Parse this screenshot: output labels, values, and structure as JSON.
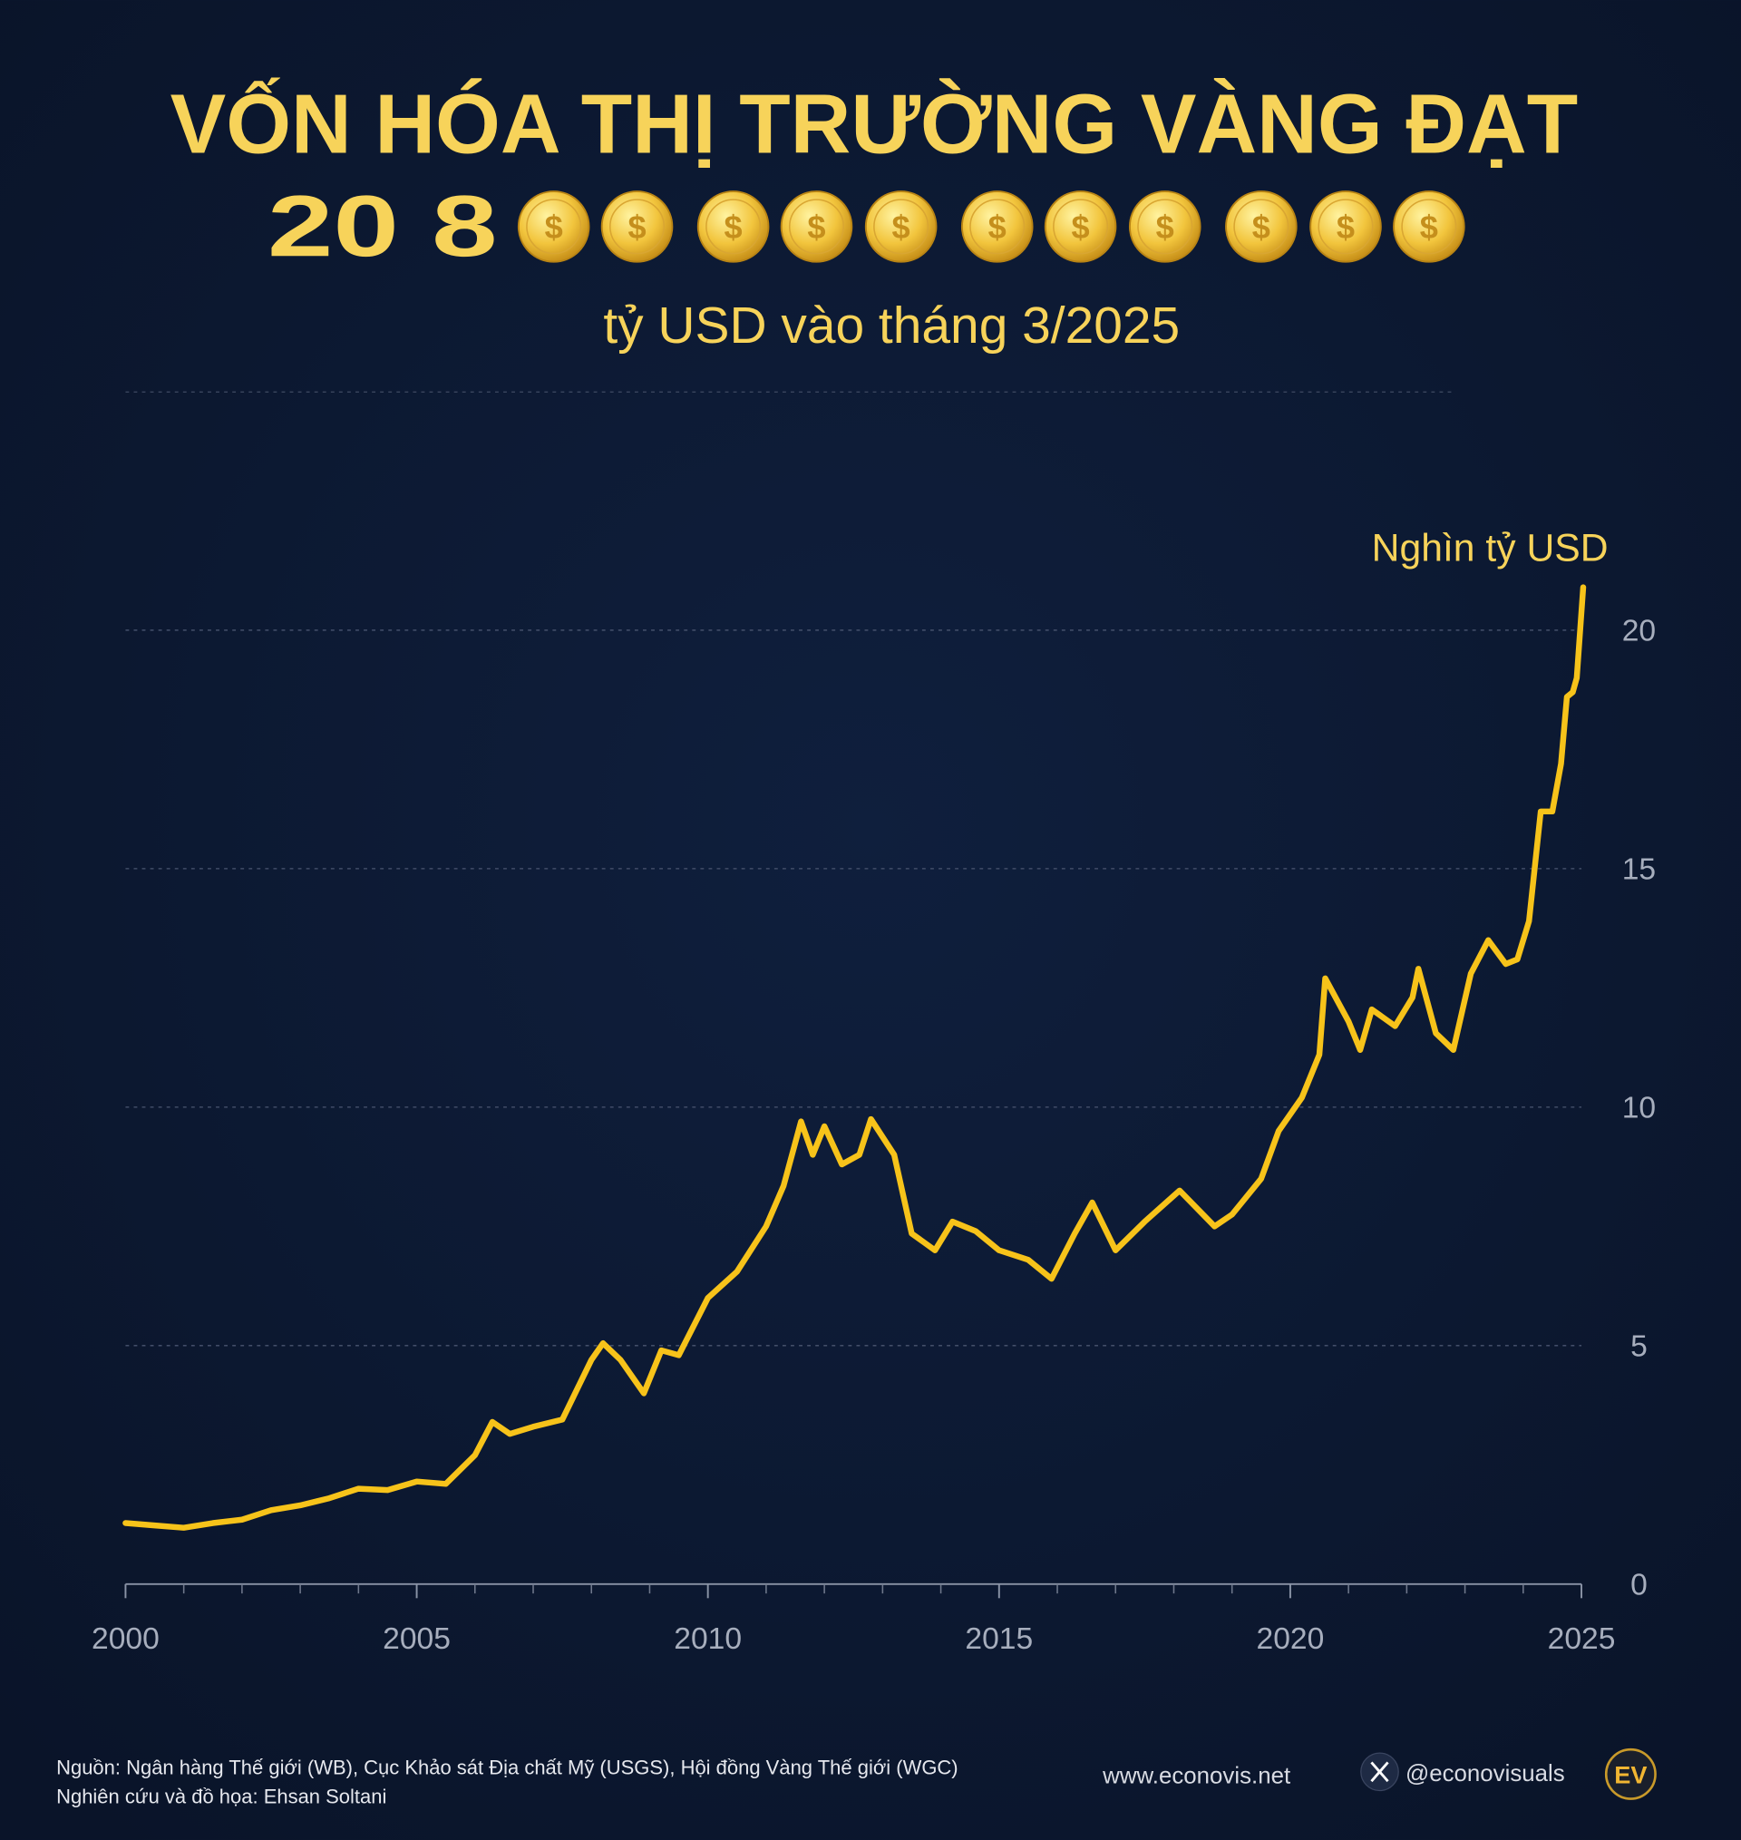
{
  "chart_data": {
    "type": "line",
    "title": "VỐN HÓA THỊ TRƯỜNG VÀNG ĐẠT",
    "headline_number": "20 8",
    "subtitle": "tỷ USD vào tháng 3/2025",
    "y_axis_label": "Nghìn tỷ USD",
    "color": "#f7c31a",
    "x": [
      2000,
      2000.5,
      2001,
      2001.5,
      2002,
      2002.5,
      2003,
      2003.5,
      2004,
      2004.5,
      2005,
      2005.5,
      2006,
      2006.3,
      2006.6,
      2007,
      2007.5,
      2008,
      2008.2,
      2008.5,
      2008.9,
      2009.2,
      2009.5,
      2010,
      2010.5,
      2011,
      2011.3,
      2011.6,
      2011.8,
      2012,
      2012.3,
      2012.6,
      2012.8,
      2013.2,
      2013.5,
      2013.9,
      2014.2,
      2014.6,
      2015,
      2015.5,
      2015.9,
      2016.3,
      2016.6,
      2017,
      2017.5,
      2018.1,
      2018.7,
      2019,
      2019.5,
      2019.8,
      2020.2,
      2020.5,
      2020.6,
      2021,
      2021.2,
      2021.4,
      2021.8,
      2022.1,
      2022.2,
      2022.5,
      2022.8,
      2023.1,
      2023.4,
      2023.7,
      2023.9,
      2024.1,
      2024.3,
      2024.5,
      2024.65,
      2024.75,
      2024.85,
      2024.92,
      2025.03
    ],
    "values": [
      1.28,
      1.23,
      1.18,
      1.28,
      1.35,
      1.55,
      1.65,
      1.8,
      2.0,
      1.97,
      2.15,
      2.1,
      2.7,
      3.4,
      3.15,
      3.3,
      3.45,
      4.7,
      5.05,
      4.7,
      4.0,
      4.9,
      4.8,
      6.0,
      6.55,
      7.5,
      8.35,
      9.7,
      9.0,
      9.6,
      8.8,
      9.0,
      9.75,
      9.0,
      7.35,
      7.0,
      7.6,
      7.4,
      7.0,
      6.8,
      6.4,
      7.35,
      8.0,
      7.0,
      7.6,
      8.25,
      7.5,
      7.75,
      8.5,
      9.5,
      10.2,
      11.1,
      12.7,
      11.8,
      11.2,
      12.05,
      11.7,
      12.3,
      12.9,
      11.55,
      11.2,
      12.8,
      13.5,
      13.0,
      13.1,
      13.9,
      16.2,
      16.2,
      17.2,
      18.6,
      18.7,
      19.0,
      20.9
    ],
    "xlim": [
      2000,
      2025
    ],
    "xticks": [
      2000,
      2005,
      2010,
      2015,
      2020,
      2025
    ],
    "xminor_ticks": [
      2001,
      2002,
      2003,
      2004,
      2006,
      2007,
      2008,
      2009,
      2011,
      2012,
      2013,
      2014,
      2016,
      2017,
      2018,
      2019,
      2021,
      2022,
      2023,
      2024
    ],
    "ylim": [
      0,
      20
    ],
    "yticks": [
      0,
      5,
      10,
      15,
      20
    ],
    "grid": true,
    "source": "Nguồn: Ngân hàng Thế giới (WB), Cục Khảo sát Địa chất Mỹ (USGS), Hội đồng Vàng Thế giới (WGC)",
    "credit": "Nghiên cứu và đồ họa: Ehsan Soltani",
    "website": "www.econovis.net",
    "handle": "@econovisuals",
    "logo": "EV"
  }
}
